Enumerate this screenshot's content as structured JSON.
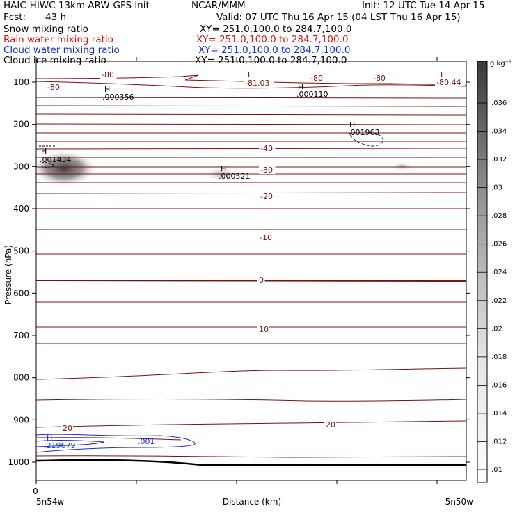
{
  "header": {
    "title_left": "HAIC-HIWC 13km ARW-GFS init",
    "institution": "NCAR/MMM",
    "init": "Init: 12 UTC Tue 14 Apr 15",
    "fcst_label": "Fcst:",
    "fcst_value": "43 h",
    "valid": "Valid: 07 UTC Thu 16 Apr 15 (04 LST Thu 16 Apr 15)"
  },
  "fields": [
    {
      "name": "Snow mixing ratio",
      "xy": "XY= 251.0,100.0 to 284.7,100.0",
      "color": "#000000"
    },
    {
      "name": "Rain water mixing ratio",
      "xy": "XY= 251.0,100.0 to 284.7,100.0",
      "color": "#e01010"
    },
    {
      "name": "Cloud water mixing ratio",
      "xy": "XY= 251.0,100.0 to 284.7,100.0",
      "color": "#1a2bd8"
    },
    {
      "name": "Cloud ice mixing ratio",
      "xy": "XY= 251.0,100.0 to 284.7,100.0",
      "color": "#000000"
    }
  ],
  "chart_data": {
    "type": "contour-cross-section",
    "ylabel": "Pressure (hPa)",
    "xlabel": "Distance (km)",
    "y_ticks": [
      100,
      200,
      300,
      400,
      500,
      600,
      700,
      800,
      900,
      1000
    ],
    "x_tick_zero": "0",
    "x_left_label": "5n54w",
    "x_right_label": "5n50w",
    "ylim": [
      1050,
      75
    ],
    "xlim": [
      0,
      1
    ],
    "colorbar": {
      "unit": "g kg⁻¹",
      "ticks": [
        ".036",
        ".034",
        ".032",
        ".03",
        ".028",
        ".026",
        ".024",
        ".022",
        ".02",
        ".018",
        ".016",
        ".014",
        ".012",
        ".01"
      ]
    },
    "temperature_labels": [
      {
        "text": "-80",
        "x": 0.36,
        "p": 107
      },
      {
        "text": "-81.03",
        "x": 1.04,
        "p": 118
      },
      {
        "text": "-80",
        "x": 1.38,
        "p": 110
      },
      {
        "text": "-80",
        "x": 1.7,
        "p": 110
      },
      {
        "text": "-80.44",
        "x": 2.0,
        "p": 118
      },
      {
        "text": "-80",
        "x": 0.1,
        "p": 125
      },
      {
        "text": "-40",
        "x": 1.17,
        "p": 245
      },
      {
        "text": "-30",
        "x": 1.17,
        "p": 303
      },
      {
        "text": "-20",
        "x": 1.17,
        "p": 372
      },
      {
        "text": "-10",
        "x": 1.17,
        "p": 540
      },
      {
        "text": "0",
        "x": 1.17,
        "p": 570
      },
      {
        "text": "10",
        "x": 1.17,
        "p": 690
      },
      {
        "text": "20",
        "x": 1.45,
        "p": 914
      },
      {
        "text": "20",
        "x": 0.15,
        "p": 918
      }
    ],
    "extrema": [
      {
        "kind": "H",
        "value": ".000356",
        "field": "Cloud ice mixing ratio"
      },
      {
        "kind": "H",
        "value": ".000110",
        "field": "Cloud ice mixing ratio"
      },
      {
        "kind": "H",
        "value": ".001963",
        "field": "Cloud ice mixing ratio"
      },
      {
        "kind": "H",
        "value": ".001434",
        "field": "Cloud ice mixing ratio"
      },
      {
        "kind": "H",
        "value": ".000521",
        "field": "Cloud ice mixing ratio"
      },
      {
        "kind": "H",
        "value": ".219679",
        "field": "Cloud water mixing ratio"
      },
      {
        "kind": "L",
        "value": "",
        "field": "Temperature"
      },
      {
        "kind": "L",
        "value": "",
        "field": "Temperature"
      }
    ],
    "cloud_water_contour_label": ".001",
    "temperature_isotherms_C": [
      -80,
      -70,
      -60,
      -50,
      -40,
      -30,
      -20,
      -10,
      0,
      10,
      20
    ]
  }
}
